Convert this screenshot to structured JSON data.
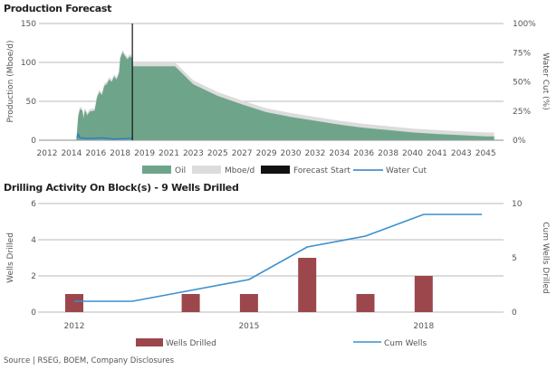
{
  "chart_data": [
    {
      "type": "area",
      "title": "Production Forecast",
      "ylabel": "Production (Mboe/d)",
      "y2label": "Water Cut (%)",
      "ylim": [
        0,
        150
      ],
      "y2lim": [
        0,
        100
      ],
      "yticks": [
        "0",
        "50",
        "100",
        "150"
      ],
      "y2ticks": [
        "0%",
        "25%",
        "50%",
        "75%",
        "100%"
      ],
      "xticks": [
        "2012",
        "2014",
        "2016",
        "2018",
        "2019",
        "2021",
        "2023",
        "2025",
        "2027",
        "2029",
        "2030",
        "2032",
        "2034",
        "2036",
        "2038",
        "2040",
        "2041",
        "2043",
        "2045"
      ],
      "grid": true,
      "legend": "bottom",
      "legend_entries": [
        "Oil",
        "Mboe/d",
        "Forecast Start",
        "Water Cut"
      ],
      "colors": {
        "oil": "#6ea58a",
        "total": "#dcdcdc",
        "forecast": "#111111",
        "water": "#2e7fc4"
      },
      "forecast_start": 2018.5,
      "oil": [
        [
          2012,
          0
        ],
        [
          2014.4,
          0
        ],
        [
          2014.55,
          30
        ],
        [
          2014.7,
          40
        ],
        [
          2014.9,
          38
        ],
        [
          2015.0,
          28
        ],
        [
          2015.1,
          39
        ],
        [
          2015.3,
          32
        ],
        [
          2015.5,
          37
        ],
        [
          2015.9,
          38
        ],
        [
          2016.1,
          55
        ],
        [
          2016.3,
          62
        ],
        [
          2016.5,
          58
        ],
        [
          2016.7,
          70
        ],
        [
          2016.9,
          72
        ],
        [
          2017.1,
          78
        ],
        [
          2017.3,
          75
        ],
        [
          2017.5,
          82
        ],
        [
          2017.7,
          78
        ],
        [
          2017.9,
          86
        ],
        [
          2018.0,
          105
        ],
        [
          2018.1,
          113
        ],
        [
          2018.2,
          108
        ],
        [
          2018.3,
          104
        ],
        [
          2018.4,
          108
        ],
        [
          2018.5,
          105
        ],
        [
          2018.51,
          95
        ],
        [
          2021.5,
          95
        ],
        [
          2023,
          72
        ],
        [
          2025,
          57
        ],
        [
          2027,
          46
        ],
        [
          2029,
          36
        ],
        [
          2030,
          30
        ],
        [
          2032,
          25
        ],
        [
          2034,
          20
        ],
        [
          2036,
          16
        ],
        [
          2038,
          13
        ],
        [
          2040,
          10
        ],
        [
          2041,
          8
        ],
        [
          2043,
          6.5
        ],
        [
          2045,
          5
        ],
        [
          2045.7,
          5
        ]
      ],
      "total_offset": [
        3,
        5
      ],
      "water_cut": [
        [
          2014.45,
          2
        ],
        [
          2014.55,
          5
        ],
        [
          2014.7,
          2
        ],
        [
          2015.5,
          1.5
        ],
        [
          2016.5,
          2
        ],
        [
          2017.5,
          1
        ],
        [
          2018.3,
          1.5
        ],
        [
          2018.5,
          2
        ]
      ]
    },
    {
      "type": "bar+line",
      "title": "Drilling Activity On Block(s)  - 9 Wells Drilled",
      "ylabel": "Wells Drilled",
      "y2label": "Cum Wells Drilled",
      "ylim": [
        0,
        6
      ],
      "y2lim": [
        0,
        10
      ],
      "yticks": [
        "0",
        "2",
        "4",
        "6"
      ],
      "y2ticks": [
        "0",
        "5",
        "10"
      ],
      "xticks": [
        "2012",
        "2015",
        "2018"
      ],
      "categories": [
        2012,
        2013,
        2014,
        2015,
        2016,
        2017,
        2018,
        2019
      ],
      "series": [
        {
          "name": "Wells Drilled",
          "type": "bar",
          "values": [
            1,
            0,
            1,
            1,
            3,
            1,
            2,
            0
          ],
          "color": "#9b474c"
        },
        {
          "name": "Cum Wells",
          "type": "line",
          "values": [
            1,
            1,
            2,
            3,
            6,
            7,
            9,
            9
          ],
          "color": "#3a8fd0"
        }
      ],
      "grid": true,
      "legend": "bottom"
    }
  ],
  "source": "Source | RSEG, BOEM, Company Disclosures"
}
